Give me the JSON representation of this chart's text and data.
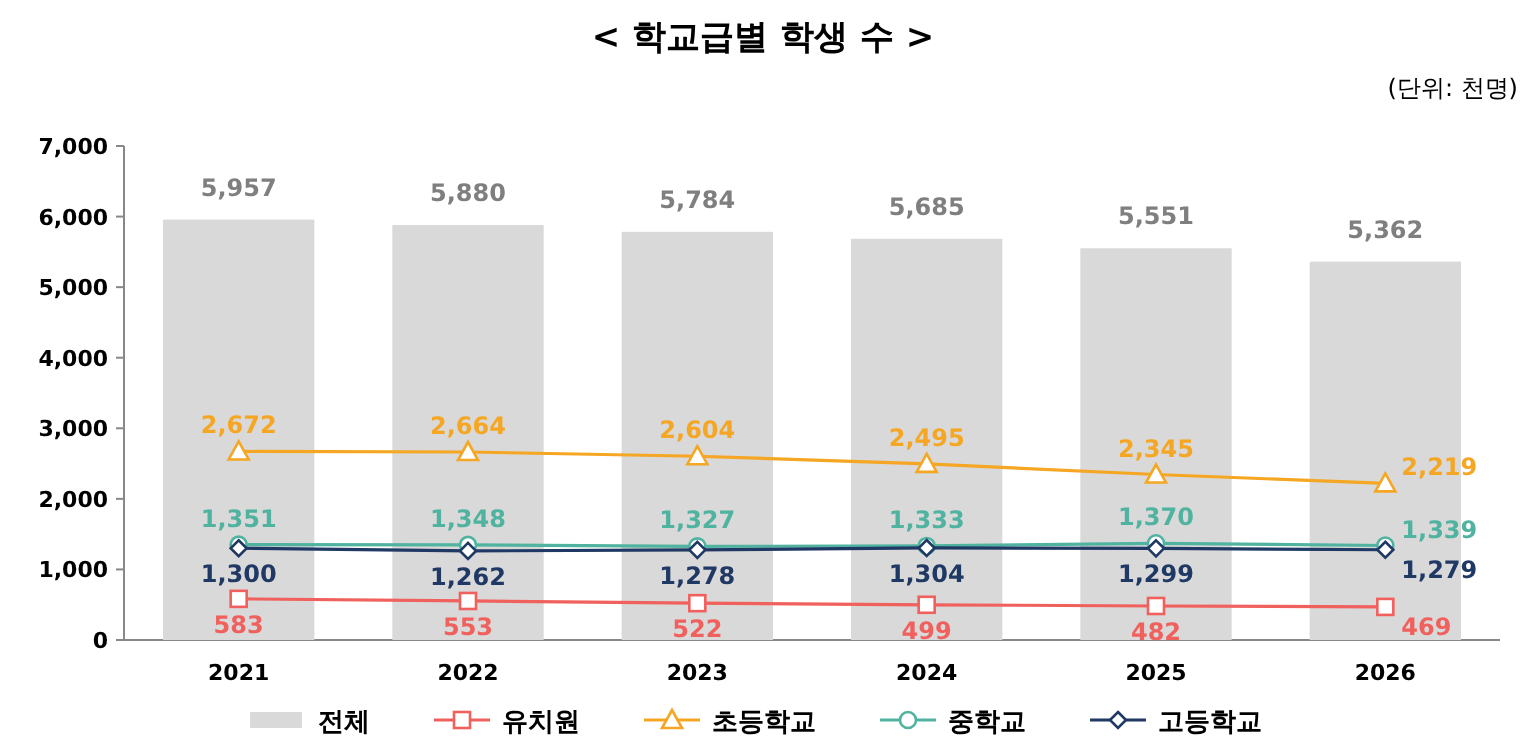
{
  "chart_data": {
    "type": "bar",
    "title": "< 학교급별 학생 수 >",
    "annotations": [
      "(단위:  천명)"
    ],
    "categories": [
      "2021",
      "2022",
      "2023",
      "2024",
      "2025",
      "2026"
    ],
    "series": [
      {
        "name": "전체",
        "color": "#d9d9d9",
        "values": [
          5957,
          5880,
          5784,
          5685,
          5551,
          5362
        ],
        "value_labels": [
          "5,957",
          "5,880",
          "5,784",
          "5,685",
          "5,551",
          "5,362"
        ]
      },
      {
        "name": "유치원",
        "type": "line",
        "marker": "square",
        "color": "#f0605d",
        "values": [
          583,
          553,
          522,
          499,
          482,
          469
        ],
        "value_labels": [
          "583",
          "553",
          "522",
          "499",
          "482",
          "469"
        ]
      },
      {
        "name": "초등학교",
        "type": "line",
        "marker": "triangle",
        "color": "#f5a623",
        "values": [
          2672,
          2664,
          2604,
          2495,
          2345,
          2219
        ],
        "value_labels": [
          "2,672",
          "2,664",
          "2,604",
          "2,495",
          "2,345",
          "2,219"
        ]
      },
      {
        "name": "중학교",
        "type": "line",
        "marker": "circle",
        "color": "#4fb3a0",
        "values": [
          1351,
          1348,
          1327,
          1333,
          1370,
          1339
        ],
        "value_labels": [
          "1,351",
          "1,348",
          "1,327",
          "1,333",
          "1,370",
          "1,339"
        ]
      },
      {
        "name": "고등학교",
        "type": "line",
        "marker": "diamond",
        "color": "#1f3864",
        "values": [
          1300,
          1262,
          1278,
          1304,
          1299,
          1279
        ],
        "value_labels": [
          "1,300",
          "1,262",
          "1,278",
          "1,304",
          "1,299",
          "1,279"
        ]
      }
    ],
    "ylim": [
      0,
      7000
    ],
    "yticks": [
      0,
      {
        "value": 1000,
        "label": "1,000"
      },
      {
        "value": 2000,
        "label": "2,000"
      },
      {
        "value": 3000,
        "label": "3,000"
      },
      {
        "value": 4000,
        "label": "4,000"
      },
      {
        "value": 5000,
        "label": "5,000"
      },
      {
        "value": 6000,
        "label": "6,000"
      },
      {
        "value": 7000,
        "label": "7,000"
      }
    ],
    "legend": "bottom"
  }
}
